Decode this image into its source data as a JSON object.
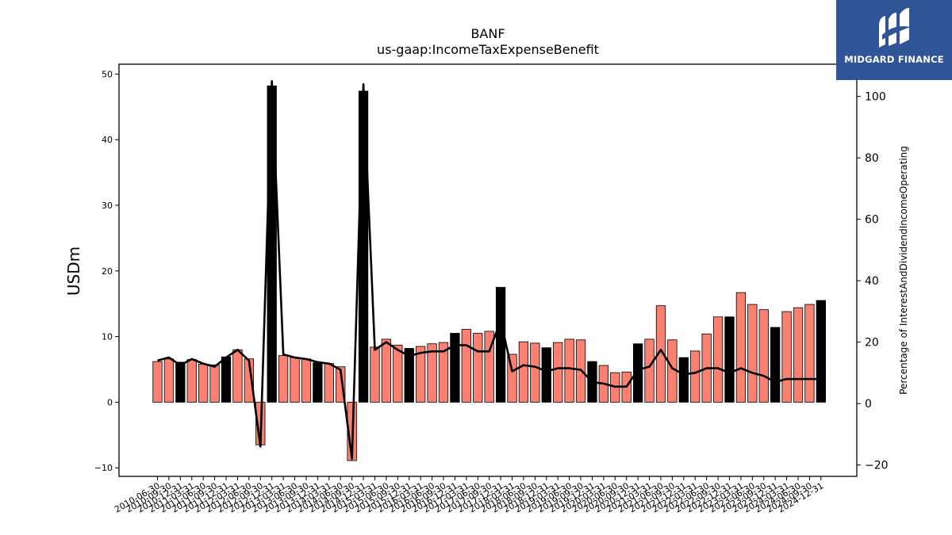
{
  "chart_data": {
    "type": "bar",
    "title": "BANF",
    "subtitle": "us-gaap:IncomeTaxExpenseBenefit",
    "ylabel": "USDm",
    "y2label": "Percentage of InterestAndDividendIncomeOperating",
    "ylim": [
      -11.3,
      51.5
    ],
    "y2lim": [
      -23.7,
      110.5
    ],
    "yticks": [
      -10,
      0,
      10,
      20,
      30,
      40,
      50
    ],
    "y2ticks": [
      -20,
      0,
      20,
      40,
      60,
      80,
      100
    ],
    "grid": false,
    "legend": "none",
    "colors": {
      "quarter_bar": "#fa8072",
      "year_end_bar": "#000000",
      "line": "#000000",
      "edge": "#000000"
    },
    "categories": [
      "2010-06-30",
      "2010-09-30",
      "2010-12-31",
      "2011-03-31",
      "2011-06-30",
      "2011-09-30",
      "2011-12-31",
      "2012-03-31",
      "2012-06-30",
      "2012-09-30",
      "2012-12-31",
      "2013-03-31",
      "2013-06-30",
      "2013-09-30",
      "2013-12-31",
      "2014-03-31",
      "2014-06-30",
      "2014-09-30",
      "2014-12-31",
      "2015-03-31",
      "2015-06-30",
      "2015-09-30",
      "2015-12-31",
      "2016-03-31",
      "2016-06-30",
      "2016-09-30",
      "2016-12-31",
      "2017-03-31",
      "2017-06-30",
      "2017-09-30",
      "2017-12-31",
      "2018-03-31",
      "2018-06-30",
      "2018-09-30",
      "2018-12-31",
      "2019-03-31",
      "2019-06-30",
      "2019-09-30",
      "2019-12-31",
      "2020-03-31",
      "2020-06-30",
      "2020-09-30",
      "2020-12-31",
      "2021-03-31",
      "2021-06-30",
      "2021-09-30",
      "2021-12-31",
      "2022-03-31",
      "2022-06-30",
      "2022-09-30",
      "2022-12-31",
      "2023-03-31",
      "2023-06-30",
      "2023-09-30",
      "2023-12-31",
      "2024-03-31",
      "2024-06-30",
      "2024-09-30",
      "2024-12-31"
    ],
    "series": [
      {
        "kind": "bar",
        "axis": "left",
        "values": [
          6.2,
          6.6,
          6.1,
          6.5,
          5.8,
          5.7,
          6.9,
          8.0,
          6.6,
          -6.5,
          48.2,
          7.1,
          6.8,
          6.6,
          6.0,
          5.9,
          5.4,
          -8.9,
          47.4,
          8.4,
          9.6,
          8.7,
          8.2,
          8.5,
          8.9,
          9.1,
          10.5,
          11.1,
          10.5,
          10.8,
          17.5,
          7.3,
          9.2,
          9.0,
          8.3,
          9.1,
          9.6,
          9.5,
          6.2,
          5.6,
          4.5,
          4.6,
          8.9,
          9.6,
          14.7,
          9.5,
          6.8,
          7.8,
          10.4,
          13.0,
          13.0,
          16.7,
          14.9,
          14.1,
          11.4,
          13.8,
          14.4,
          14.9,
          15.5
        ],
        "year_end": [
          false,
          false,
          true,
          false,
          false,
          false,
          true,
          false,
          false,
          false,
          true,
          false,
          false,
          false,
          true,
          false,
          false,
          false,
          true,
          false,
          false,
          false,
          true,
          false,
          false,
          false,
          true,
          false,
          false,
          false,
          true,
          false,
          false,
          false,
          true,
          false,
          false,
          false,
          true,
          false,
          false,
          false,
          true,
          false,
          false,
          false,
          true,
          false,
          false,
          false,
          true,
          false,
          false,
          false,
          true,
          false,
          false,
          false,
          true
        ]
      },
      {
        "kind": "line",
        "axis": "right",
        "values": [
          14.0,
          15.0,
          12.5,
          14.5,
          13.0,
          12.0,
          15.0,
          17.5,
          14.0,
          -14.0,
          105.0,
          16.0,
          15.0,
          14.5,
          13.5,
          13.0,
          11.0,
          -18.0,
          104.0,
          17.5,
          20.0,
          17.5,
          15.5,
          16.5,
          17.0,
          17.0,
          19.0,
          19.0,
          17.0,
          17.0,
          27.0,
          10.5,
          12.5,
          12.0,
          10.5,
          11.5,
          11.5,
          11.0,
          7.0,
          6.5,
          5.5,
          5.5,
          11.0,
          12.0,
          17.5,
          11.5,
          9.5,
          10.0,
          11.5,
          11.5,
          10.0,
          11.5,
          10.0,
          9.0,
          7.0,
          8.0,
          8.0,
          8.0,
          8.0
        ]
      }
    ]
  },
  "logo": {
    "text": "MIDGARD FINANCE"
  }
}
